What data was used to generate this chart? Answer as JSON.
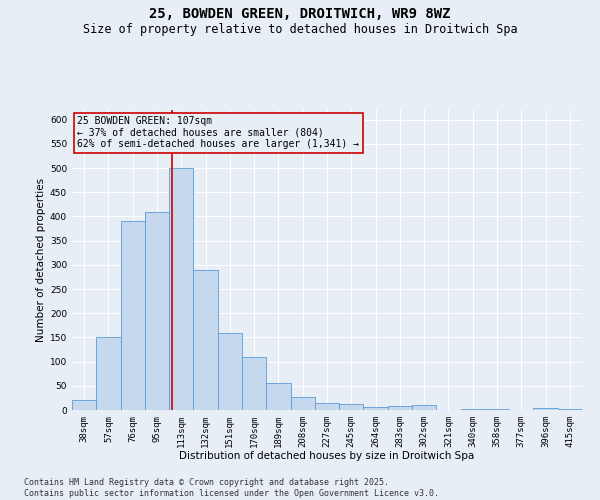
{
  "title_line1": "25, BOWDEN GREEN, DROITWICH, WR9 8WZ",
  "title_line2": "Size of property relative to detached houses in Droitwich Spa",
  "xlabel": "Distribution of detached houses by size in Droitwich Spa",
  "ylabel": "Number of detached properties",
  "categories": [
    "38sqm",
    "57sqm",
    "76sqm",
    "95sqm",
    "113sqm",
    "132sqm",
    "151sqm",
    "170sqm",
    "189sqm",
    "208sqm",
    "227sqm",
    "245sqm",
    "264sqm",
    "283sqm",
    "302sqm",
    "321sqm",
    "340sqm",
    "358sqm",
    "377sqm",
    "396sqm",
    "415sqm"
  ],
  "values": [
    20,
    150,
    390,
    410,
    500,
    290,
    160,
    110,
    55,
    27,
    15,
    12,
    6,
    8,
    10,
    0,
    3,
    3,
    0,
    5,
    3
  ],
  "bar_color": "#c5d8ed",
  "bar_edge_color": "#5b9bd5",
  "bg_color": "#e8eef6",
  "grid_color": "#ffffff",
  "annotation_text": "25 BOWDEN GREEN: 107sqm\n← 37% of detached houses are smaller (804)\n62% of semi-detached houses are larger (1,341) →",
  "annotation_box_edge": "#cc0000",
  "vline_color": "#cc0000",
  "vline_x": 3.62,
  "ylim": [
    0,
    620
  ],
  "yticks": [
    0,
    50,
    100,
    150,
    200,
    250,
    300,
    350,
    400,
    450,
    500,
    550,
    600
  ],
  "footer": "Contains HM Land Registry data © Crown copyright and database right 2025.\nContains public sector information licensed under the Open Government Licence v3.0.",
  "title_fontsize": 10,
  "subtitle_fontsize": 8.5,
  "axis_label_fontsize": 7.5,
  "tick_fontsize": 6.5,
  "annotation_fontsize": 7,
  "footer_fontsize": 6
}
